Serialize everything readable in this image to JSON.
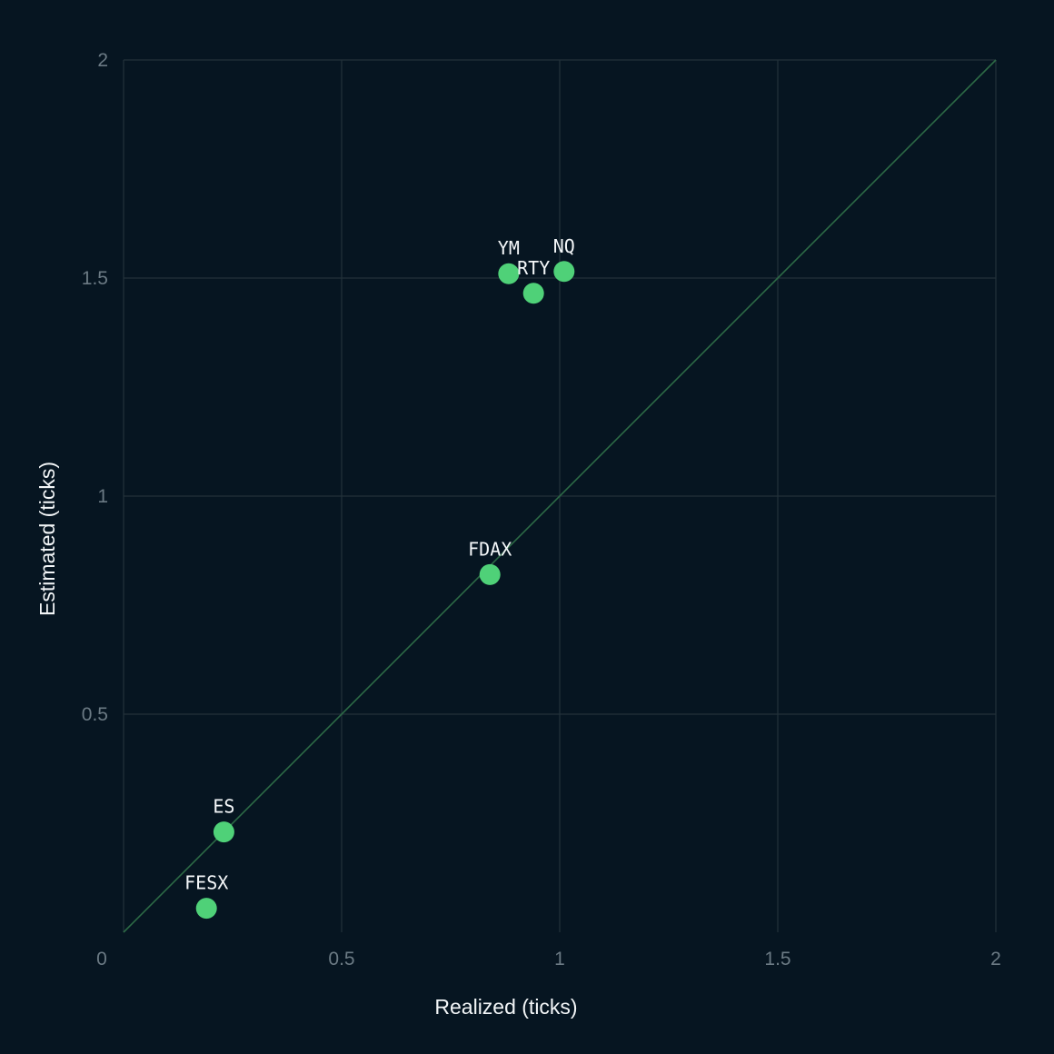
{
  "chart_data": {
    "type": "scatter",
    "title": "",
    "xlabel": "Realized (ticks)",
    "ylabel": "Estimated (ticks)",
    "xlim": [
      0,
      2
    ],
    "ylim": [
      0,
      2
    ],
    "x_ticks": [
      0,
      0.5,
      1,
      1.5,
      2
    ],
    "y_ticks": [
      0.5,
      1,
      1.5,
      2
    ],
    "grid": true,
    "reference_line": {
      "type": "identity",
      "from": [
        0,
        0
      ],
      "to": [
        2,
        2
      ]
    },
    "points": [
      {
        "label": "YM",
        "x": 0.883,
        "y": 1.51
      },
      {
        "label": "NQ",
        "x": 1.01,
        "y": 1.515
      },
      {
        "label": "RTY",
        "x": 0.94,
        "y": 1.465
      },
      {
        "label": "FDAX",
        "x": 0.84,
        "y": 0.82
      },
      {
        "label": "ES",
        "x": 0.23,
        "y": 0.23
      },
      {
        "label": "FESX",
        "x": 0.19,
        "y": 0.055
      }
    ],
    "colors": {
      "background": "#061521",
      "grid": "#23323b",
      "reference_line": "#2d6a46",
      "point": "#4fd178",
      "tick_text": "#6b7a84",
      "label_text": "#f4f7f9"
    }
  }
}
